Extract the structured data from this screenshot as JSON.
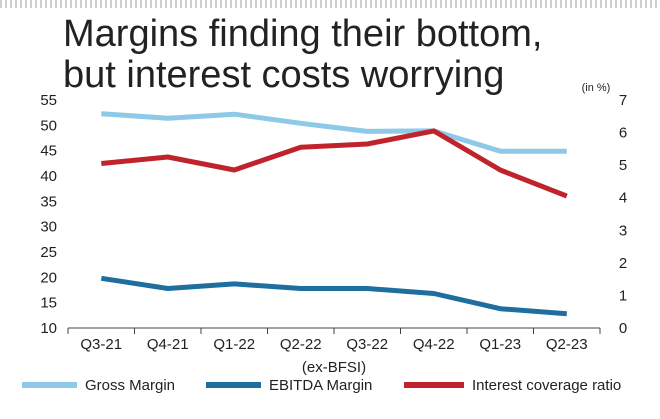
{
  "title_lines": [
    "Margins finding their bottom,",
    "but interest costs worrying"
  ],
  "chart_data": {
    "type": "line",
    "title": "Margins finding their bottom, but interest costs worrying",
    "xlabel": "(ex-BFSI)",
    "y2_unit": "(in %)",
    "categories": [
      "Q3-21",
      "Q4-21",
      "Q1-22",
      "Q2-22",
      "Q3-22",
      "Q4-22",
      "Q1-23",
      "Q2-23"
    ],
    "ylim": [
      10,
      55
    ],
    "yticks": [
      10,
      15,
      20,
      25,
      30,
      35,
      40,
      45,
      50,
      55
    ],
    "y2lim": [
      0,
      7
    ],
    "y2ticks": [
      0,
      1,
      2,
      3,
      4,
      5,
      6,
      7
    ],
    "series": [
      {
        "name": "Gross Margin",
        "axis": "left",
        "color": "#8ec9e8",
        "values": [
          52.3,
          51.4,
          52.2,
          50.4,
          48.8,
          48.9,
          44.9,
          44.9
        ]
      },
      {
        "name": "EBITDA Margin",
        "axis": "left",
        "color": "#1e6fa0",
        "values": [
          19.8,
          17.8,
          18.7,
          17.8,
          17.8,
          16.8,
          13.8,
          12.8
        ]
      },
      {
        "name": "Interest coverage ratio",
        "axis": "right",
        "color": "#c0232b",
        "values": [
          5.05,
          5.25,
          4.85,
          5.55,
          5.65,
          6.05,
          4.85,
          4.05
        ]
      }
    ],
    "legend_position": "bottom",
    "grid": false
  }
}
